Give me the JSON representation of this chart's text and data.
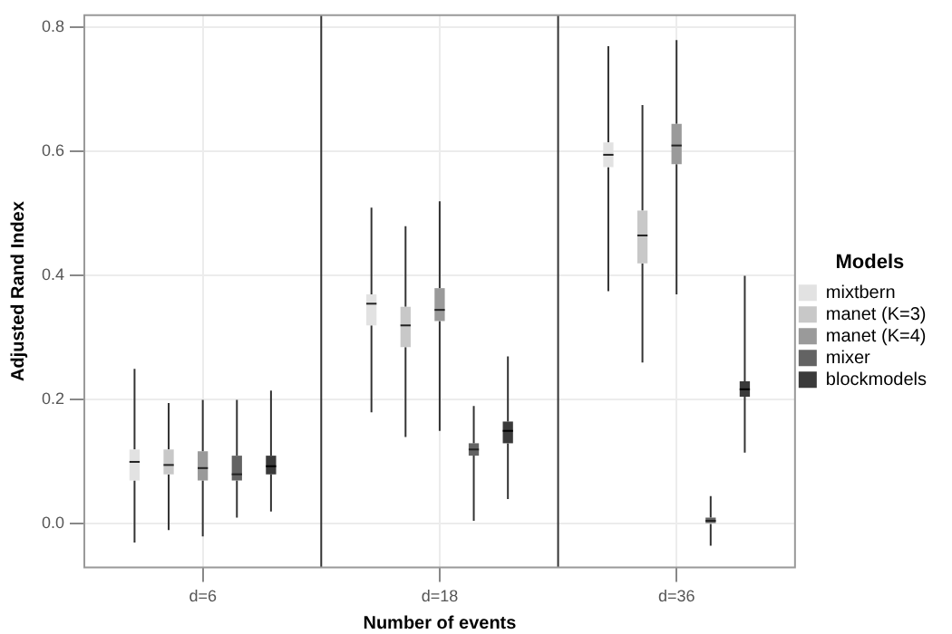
{
  "chart_data": {
    "type": "box",
    "xlabel": "Number of events",
    "ylabel": "Adjusted Rand Index",
    "legend_title": "Models",
    "legend": "right",
    "grid": true,
    "categories": [
      "d=6",
      "d=18",
      "d=36"
    ],
    "ylim": [
      -0.07,
      0.82
    ],
    "yticks": [
      {
        "value": 0,
        "label": "0.0"
      },
      0.2,
      0.4,
      0.6,
      0.8
    ],
    "series": [
      {
        "name": "mixtbern",
        "color": "#e2e2e2",
        "boxes": [
          {
            "low": -0.03,
            "q1": 0.07,
            "median": 0.1,
            "q3": 0.12,
            "high": 0.25
          },
          {
            "low": 0.18,
            "q1": 0.32,
            "median": 0.355,
            "q3": 0.37,
            "high": 0.51
          },
          {
            "low": 0.375,
            "q1": 0.575,
            "median": 0.595,
            "q3": 0.615,
            "high": 0.77
          }
        ]
      },
      {
        "name": "manet (K=3)",
        "color": "#c8c8c8",
        "boxes": [
          {
            "low": -0.01,
            "q1": 0.08,
            "median": 0.095,
            "q3": 0.12,
            "high": 0.195
          },
          {
            "low": 0.14,
            "q1": 0.285,
            "median": 0.32,
            "q3": 0.35,
            "high": 0.48
          },
          {
            "low": 0.26,
            "q1": 0.42,
            "median": 0.465,
            "q3": 0.505,
            "high": 0.675
          }
        ]
      },
      {
        "name": "manet (K=4)",
        "color": "#9a9a9a",
        "boxes": [
          {
            "low": -0.02,
            "q1": 0.07,
            "median": 0.09,
            "q3": 0.117,
            "high": 0.2
          },
          {
            "low": 0.15,
            "q1": 0.327,
            "median": 0.345,
            "q3": 0.38,
            "high": 0.52
          },
          {
            "low": 0.37,
            "q1": 0.58,
            "median": 0.61,
            "q3": 0.645,
            "high": 0.78
          }
        ]
      },
      {
        "name": "mixer",
        "color": "#636363",
        "boxes": [
          {
            "low": 0.01,
            "q1": 0.07,
            "median": 0.08,
            "q3": 0.11,
            "high": 0.2
          },
          {
            "low": 0.005,
            "q1": 0.11,
            "median": 0.12,
            "q3": 0.13,
            "high": 0.19
          },
          {
            "low": -0.035,
            "q1": 0,
            "median": 0.005,
            "q3": 0.01,
            "high": 0.045
          }
        ]
      },
      {
        "name": "blockmodels",
        "color": "#3a3a3a",
        "boxes": [
          {
            "low": 0.02,
            "q1": 0.08,
            "median": 0.093,
            "q3": 0.11,
            "high": 0.215
          },
          {
            "low": 0.04,
            "q1": 0.13,
            "median": 0.15,
            "q3": 0.165,
            "high": 0.27
          },
          {
            "low": 0.115,
            "q1": 0.205,
            "median": 0.217,
            "q3": 0.23,
            "high": 0.4
          }
        ]
      }
    ]
  }
}
